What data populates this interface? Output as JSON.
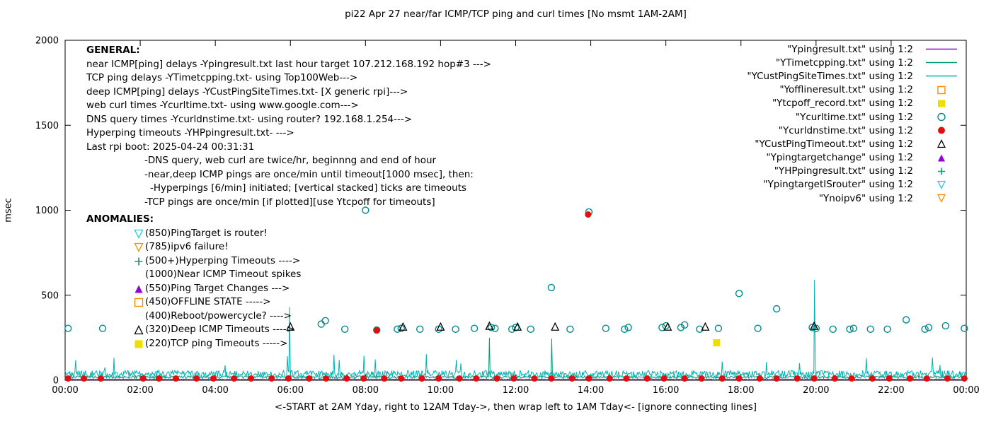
{
  "title": "pi22 Apr 27  near/far ICMP/TCP ping and curl times [No msmt 1AM-2AM]",
  "axes": {
    "ylabel": "msec",
    "xlabel": "<-START at 2AM Yday, right to 12AM Tday->, then wrap left to 1AM Tday<- [ignore connecting lines]",
    "ylim": [
      0,
      2000
    ],
    "yticks": [
      0,
      500,
      1000,
      1500,
      2000
    ],
    "xticks": {
      "values": [
        0,
        2,
        4,
        6,
        8,
        10,
        12,
        14,
        16,
        18,
        20,
        22,
        24
      ],
      "labels": [
        "00:00",
        "02:00",
        "04:00",
        "06:00",
        "08:00",
        "10:00",
        "12:00",
        "14:00",
        "16:00",
        "18:00",
        "20:00",
        "22:00",
        "00:00"
      ]
    }
  },
  "general": {
    "heading": "GENERAL:",
    "lines": [
      {
        "t": "near ICMP[ping] delays -Ypingresult.txt last hour target 107.212.168.192 hop#3 --->",
        "i": 0
      },
      {
        "t": "TCP ping delays -YTimetcpping.txt- using Top100Web--->",
        "i": 0
      },
      {
        "t": "deep ICMP[ping] delays -YCustPingSiteTimes.txt- [X generic rpi]--->",
        "i": 0
      },
      {
        "t": "web curl times -Ycurltime.txt- using www.google.com--->",
        "i": 0
      },
      {
        "t": "DNS query times -Ycurldnstime.txt- using router? 192.168.1.254--->",
        "i": 0
      },
      {
        "t": "Hyperping timeouts -YHPpingresult.txt- --->",
        "i": 0
      },
      {
        "t": "Last rpi boot: 2025-04-24 00:31:31",
        "i": 0
      },
      {
        "t": "-DNS query, web curl are twice/hr, beginnng and end of hour",
        "i": 1
      },
      {
        "t": "-near,deep ICMP pings are once/min until timeout[1000 msec], then:",
        "i": 1
      },
      {
        "t": "-Hyperpings [6/min] initiated; [vertical stacked] ticks are timeouts",
        "i": 2
      },
      {
        "t": "-TCP pings are once/min [if plotted][use Ytcpoff for timeouts]",
        "i": 1
      }
    ]
  },
  "anomalies": {
    "heading": "ANOMALIES:",
    "items": [
      {
        "marker": "triangle-down-open",
        "color": "#29c5e6",
        "text": "(850)PingTarget is router!"
      },
      {
        "marker": "triangle-down-open",
        "color": "#ff8c00",
        "text": "(785)ipv6 failure!"
      },
      {
        "marker": "plus",
        "color": "#009e73",
        "text": "(500+)Hyperping Timeouts ---->"
      },
      {
        "marker": "none",
        "color": "",
        "text": "(1000)Near ICMP Timeout spikes"
      },
      {
        "marker": "triangle-up-fill",
        "color": "#9400d3",
        "text": "(550)Ping Target Changes --->"
      },
      {
        "marker": "square-open",
        "color": "#ff8c00",
        "text": "(450)OFFLINE STATE ----->"
      },
      {
        "marker": "none",
        "color": "",
        "text": "(400)Reboot/powercycle? ---->"
      },
      {
        "marker": "triangle-up-open",
        "color": "#000000",
        "text": "(320)Deep ICMP Timeouts ---->"
      },
      {
        "marker": "square-fill",
        "color": "#efdf00",
        "text": "(220)TCP ping Timeouts ----->"
      }
    ]
  },
  "legend": [
    {
      "label": "\"Ypingresult.txt\" using 1:2",
      "marker": "line",
      "color": "#9400d3"
    },
    {
      "label": "\"YTimetcpping.txt\" using 1:2",
      "marker": "line",
      "color": "#009e73"
    },
    {
      "label": "\"YCustPingSiteTimes.txt\" using 1:2",
      "marker": "line",
      "color": "#00b3b3"
    },
    {
      "label": "\"Yofflineresult.txt\" using 1:2",
      "marker": "square-open",
      "color": "#ff8c00"
    },
    {
      "label": "\"Ytcpoff_record.txt\" using 1:2",
      "marker": "square-fill",
      "color": "#efdf00"
    },
    {
      "label": "\"Ycurltime.txt\" using 1:2",
      "marker": "circle-open",
      "color": "#008b8b"
    },
    {
      "label": "\"Ycurldnstime.txt\" using 1:2",
      "marker": "circle-fill",
      "color": "#e01010"
    },
    {
      "label": "\"YCustPingTimeout.txt\" using 1:2",
      "marker": "triangle-up-open",
      "color": "#000000"
    },
    {
      "label": "\"Ypingtargetchange\" using 1:2",
      "marker": "triangle-up-fill",
      "color": "#9400d3"
    },
    {
      "label": "\"YHPpingresult.txt\" using 1:2",
      "marker": "plus",
      "color": "#009e73"
    },
    {
      "label": "\"YpingtargetISrouter\" using 1:2",
      "marker": "triangle-down-open",
      "color": "#29c5e6"
    },
    {
      "label": "\"Ynoipv6\" using 1:2",
      "marker": "triangle-down-open",
      "color": "#ff8c00"
    }
  ],
  "chart_data": {
    "type": "line",
    "title": "pi22 Apr 27  near/far ICMP/TCP ping and curl times [No msmt 1AM-2AM]",
    "xlabel": "<-START at 2AM Yday, right to 12AM Tday->, then wrap left to 1AM Tday<- [ignore connecting lines]",
    "ylabel": "msec",
    "xlim_hours": [
      0,
      24
    ],
    "ylim": [
      0,
      2000
    ],
    "grid": false,
    "legend_position": "top-right-outside-samples",
    "line_series": [
      {
        "name": "Ypingresult.txt near ICMP ping delay",
        "color": "#9400d3",
        "base": 4,
        "amp": 5,
        "spikes": []
      },
      {
        "name": "YTimetcpping.txt TCP ping delay",
        "color": "#009e73",
        "base": 16,
        "amp": 16,
        "spikes": [
          [
            11.3,
            250
          ],
          [
            12.95,
            245
          ]
        ]
      },
      {
        "name": "YCustPingSiteTimes.txt deep ICMP ping delay",
        "color": "#00b3b3",
        "base": 30,
        "amp": 42,
        "spikes": [
          [
            1.05,
            75
          ],
          [
            5.97,
            430
          ],
          [
            7.3,
            120
          ],
          [
            17.5,
            110
          ],
          [
            19.97,
            590
          ],
          [
            23.3,
            90
          ]
        ]
      }
    ],
    "scatter_series": [
      {
        "name": "Ycurltime.txt web curl times",
        "marker": "circle-open",
        "color": "#008b8b",
        "size": 4.5,
        "points": [
          [
            0.08,
            305
          ],
          [
            1.0,
            305
          ],
          [
            6.82,
            330
          ],
          [
            6.93,
            350
          ],
          [
            7.45,
            300
          ],
          [
            8.0,
            1000
          ],
          [
            8.3,
            295
          ],
          [
            8.85,
            300
          ],
          [
            8.95,
            305
          ],
          [
            9.45,
            300
          ],
          [
            9.95,
            300
          ],
          [
            10.4,
            300
          ],
          [
            10.9,
            305
          ],
          [
            11.35,
            310
          ],
          [
            11.45,
            305
          ],
          [
            11.9,
            300
          ],
          [
            12.0,
            310
          ],
          [
            12.4,
            300
          ],
          [
            12.95,
            545
          ],
          [
            13.45,
            300
          ],
          [
            13.95,
            990
          ],
          [
            14.4,
            305
          ],
          [
            14.9,
            300
          ],
          [
            15.0,
            310
          ],
          [
            15.9,
            310
          ],
          [
            16.0,
            320
          ],
          [
            16.4,
            310
          ],
          [
            16.5,
            325
          ],
          [
            16.9,
            300
          ],
          [
            17.4,
            305
          ],
          [
            17.95,
            510
          ],
          [
            18.45,
            305
          ],
          [
            18.95,
            420
          ],
          [
            19.9,
            310
          ],
          [
            20.0,
            305
          ],
          [
            20.45,
            300
          ],
          [
            20.9,
            300
          ],
          [
            21.0,
            305
          ],
          [
            21.45,
            300
          ],
          [
            21.9,
            300
          ],
          [
            22.4,
            355
          ],
          [
            22.9,
            300
          ],
          [
            23.0,
            310
          ],
          [
            23.45,
            320
          ],
          [
            23.95,
            305
          ]
        ]
      },
      {
        "name": "Ycurldnstime.txt DNS query times",
        "marker": "circle-fill",
        "color": "#e01010",
        "size": 4.5,
        "points": [
          [
            0.08,
            10
          ],
          [
            0.5,
            10
          ],
          [
            0.95,
            10
          ],
          [
            2.08,
            10
          ],
          [
            2.5,
            10
          ],
          [
            2.95,
            10
          ],
          [
            3.5,
            10
          ],
          [
            3.95,
            10
          ],
          [
            4.5,
            10
          ],
          [
            4.95,
            10
          ],
          [
            5.5,
            10
          ],
          [
            5.95,
            10
          ],
          [
            6.5,
            10
          ],
          [
            6.95,
            10
          ],
          [
            7.5,
            10
          ],
          [
            7.95,
            10
          ],
          [
            8.3,
            293
          ],
          [
            8.5,
            10
          ],
          [
            8.95,
            10
          ],
          [
            9.5,
            10
          ],
          [
            9.95,
            10
          ],
          [
            10.5,
            10
          ],
          [
            10.95,
            10
          ],
          [
            11.5,
            10
          ],
          [
            11.95,
            10
          ],
          [
            12.5,
            10
          ],
          [
            12.95,
            10
          ],
          [
            13.5,
            10
          ],
          [
            13.93,
            975
          ],
          [
            13.95,
            10
          ],
          [
            14.5,
            10
          ],
          [
            14.95,
            10
          ],
          [
            15.5,
            10
          ],
          [
            15.95,
            10
          ],
          [
            16.5,
            10
          ],
          [
            16.95,
            10
          ],
          [
            17.5,
            10
          ],
          [
            17.95,
            10
          ],
          [
            18.5,
            10
          ],
          [
            18.95,
            10
          ],
          [
            19.5,
            10
          ],
          [
            19.95,
            10
          ],
          [
            20.5,
            10
          ],
          [
            20.95,
            10
          ],
          [
            21.5,
            10
          ],
          [
            21.95,
            10
          ],
          [
            22.5,
            10
          ],
          [
            22.95,
            10
          ],
          [
            23.5,
            10
          ],
          [
            23.95,
            10
          ]
        ]
      },
      {
        "name": "YCustPingTimeout.txt deep ICMP timeouts",
        "marker": "triangle-up-open",
        "color": "#000000",
        "size": 5,
        "points": [
          [
            6.0,
            315
          ],
          [
            9.0,
            315
          ],
          [
            10.0,
            315
          ],
          [
            11.3,
            320
          ],
          [
            12.05,
            315
          ],
          [
            13.05,
            315
          ],
          [
            16.05,
            315
          ],
          [
            17.05,
            315
          ],
          [
            19.95,
            320
          ]
        ]
      },
      {
        "name": "Ytcpoff_record.txt TCP ping timeouts",
        "marker": "square-fill",
        "color": "#efdf00",
        "size": 5,
        "points": [
          [
            17.35,
            220
          ]
        ]
      }
    ]
  }
}
